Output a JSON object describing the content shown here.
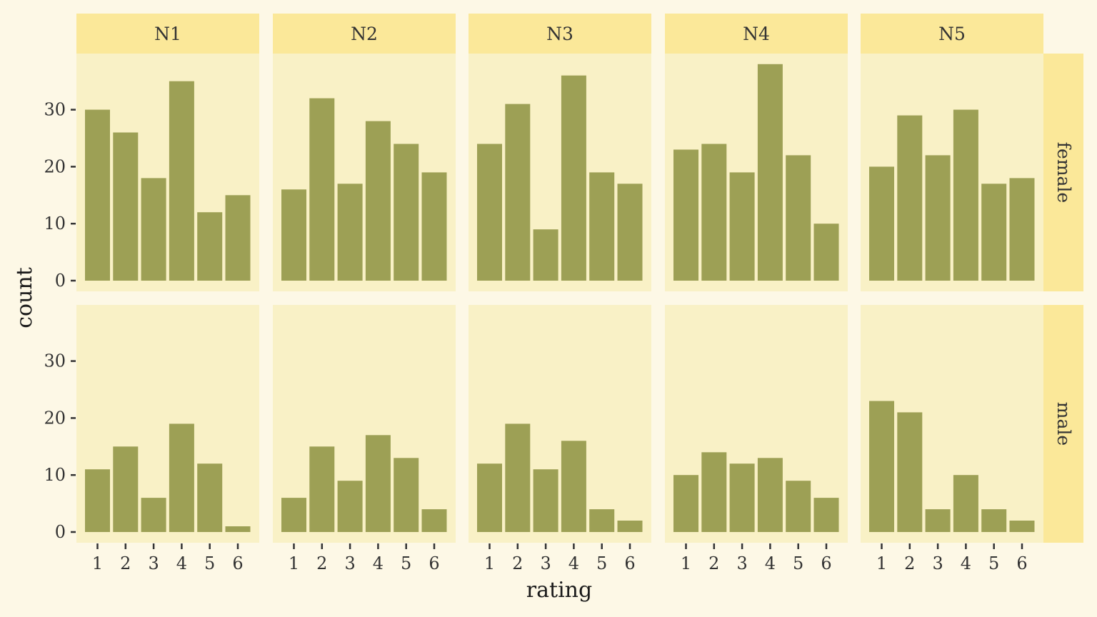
{
  "figure": {
    "background": "#fdf8e6",
    "panel_background": "#f9f1c6",
    "strip_background": "#fbe899",
    "bar_color": "#9da055",
    "text_color": "#333333"
  },
  "chart_data": {
    "type": "bar",
    "facet_columns": [
      "N1",
      "N2",
      "N3",
      "N4",
      "N5"
    ],
    "facet_rows": [
      "female",
      "male"
    ],
    "categories": [
      "1",
      "2",
      "3",
      "4",
      "5",
      "6"
    ],
    "xlabel": "rating",
    "ylabel": "count",
    "ylim": [
      0,
      39
    ],
    "yticks": [
      0,
      10,
      20,
      30
    ],
    "grid": false,
    "panels": [
      {
        "row": "female",
        "col": "N1",
        "values": [
          30,
          26,
          18,
          35,
          12,
          15
        ]
      },
      {
        "row": "female",
        "col": "N2",
        "values": [
          16,
          32,
          17,
          28,
          24,
          19
        ]
      },
      {
        "row": "female",
        "col": "N3",
        "values": [
          24,
          31,
          9,
          36,
          19,
          17
        ]
      },
      {
        "row": "female",
        "col": "N4",
        "values": [
          23,
          24,
          19,
          38,
          22,
          10
        ]
      },
      {
        "row": "female",
        "col": "N5",
        "values": [
          20,
          29,
          22,
          30,
          17,
          18
        ]
      },
      {
        "row": "male",
        "col": "N1",
        "values": [
          11,
          15,
          6,
          19,
          12,
          1
        ]
      },
      {
        "row": "male",
        "col": "N2",
        "values": [
          6,
          15,
          9,
          17,
          13,
          4
        ]
      },
      {
        "row": "male",
        "col": "N3",
        "values": [
          12,
          19,
          11,
          16,
          4,
          2
        ]
      },
      {
        "row": "male",
        "col": "N4",
        "values": [
          10,
          14,
          12,
          13,
          9,
          6
        ]
      },
      {
        "row": "male",
        "col": "N5",
        "values": [
          23,
          21,
          4,
          10,
          4,
          2
        ]
      }
    ]
  }
}
